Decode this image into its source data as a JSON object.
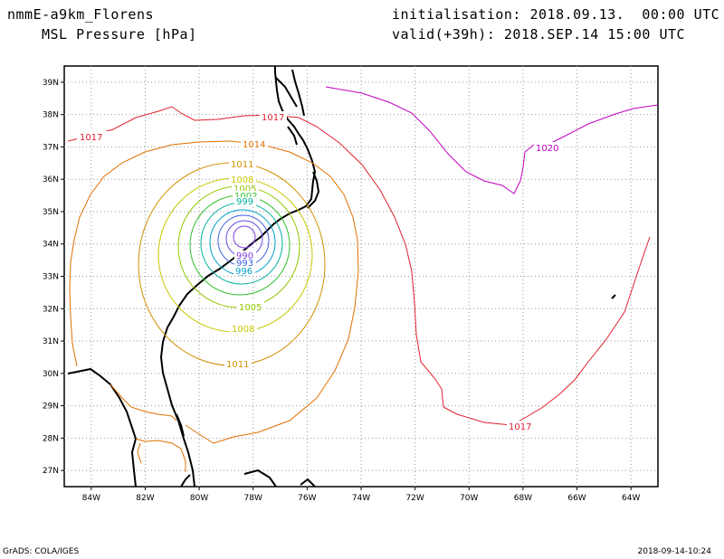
{
  "header": {
    "model": "nmmE-a9km_Florens",
    "variable": "MSL Pressure [hPa]",
    "init": "initialisation: 2018.09.13.  00:00 UTC",
    "valid": "valid(+39h): 2018.SEP.14 15:00 UTC"
  },
  "footer": {
    "credit": "GrADS: COLA/IGES",
    "timestamp": "2018-09-14-10:24"
  },
  "map": {
    "lon_range": [
      -85,
      -63
    ],
    "lat_range": [
      26.5,
      39.5
    ],
    "lon_ticks": [
      "84W",
      "82W",
      "80W",
      "78W",
      "76W",
      "74W",
      "72W",
      "70W",
      "68W",
      "66W",
      "64W"
    ],
    "lat_ticks": [
      "39N",
      "38N",
      "37N",
      "36N",
      "35N",
      "34N",
      "33N",
      "32N",
      "31N",
      "30N",
      "29N",
      "28N",
      "27N"
    ],
    "grid": "dotted",
    "storm_center": {
      "lon": -78.4,
      "lat": 34.2
    },
    "contour_labels": [
      "1017",
      "1017",
      "1014",
      "1011",
      "1008",
      "1005",
      "1002",
      "999",
      "996",
      "993",
      "990",
      "1005",
      "1008",
      "1011",
      "1017",
      "1020"
    ],
    "colors": {
      "1020": "#c000c0",
      "1017": "#e02030",
      "1014": "#e07000",
      "1011": "#d09000",
      "1008": "#c8c800",
      "1005": "#90c800",
      "1002": "#30c030",
      "999": "#00b0a0",
      "996": "#00a0c8",
      "993": "#4060e0",
      "990": "#8040e0",
      "coast": "#000000",
      "border": "#e07000"
    }
  }
}
